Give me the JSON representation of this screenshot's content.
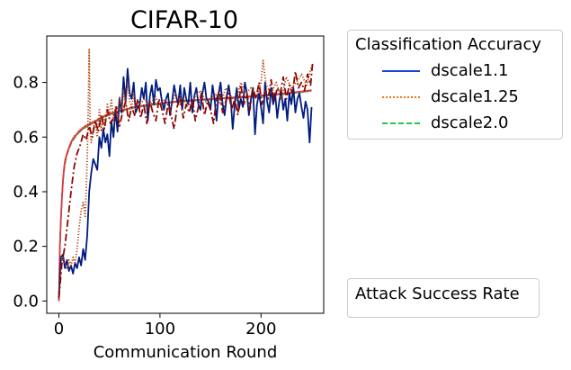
{
  "chart_data": {
    "type": "line",
    "title": "CIFAR-10",
    "xlabel": "Communication Round",
    "ylabel": "",
    "xlim": [
      -12,
      262
    ],
    "ylim": [
      -0.045,
      0.97
    ],
    "xticks": [
      0,
      100,
      200
    ],
    "yticks": [
      0.0,
      0.2,
      0.4,
      0.6,
      0.8
    ],
    "xtick_labels": [
      "0",
      "100",
      "200"
    ],
    "ytick_labels": [
      "0.0",
      "0.2",
      "0.4",
      "0.6",
      "0.8"
    ],
    "grid": false,
    "legend_groups": [
      {
        "title": "Classification Accuracy",
        "placement": "outside-right-top",
        "entries": [
          {
            "label": "dscale1.1",
            "color": "#1f3fd6",
            "style": "solid"
          },
          {
            "label": "dscale1.25",
            "color": "#ee7711",
            "style": "dotted"
          },
          {
            "label": "dscale2.0",
            "color": "#22cc44",
            "style": "dashed"
          }
        ]
      },
      {
        "title": "Attack Success Rate",
        "placement": "outside-right-bottom",
        "entries": []
      }
    ],
    "series": [
      {
        "group": "Classification Accuracy",
        "color": "#1f3fd6",
        "style": "solid",
        "x": [
          0,
          1,
          2,
          3,
          4,
          5,
          6,
          8,
          10,
          12,
          15,
          18,
          20,
          25,
          30,
          35,
          40,
          45,
          50,
          60,
          70,
          80,
          90,
          100,
          110,
          120,
          130,
          140,
          150,
          160,
          170,
          180,
          190,
          200,
          210,
          220,
          230,
          240,
          250
        ],
        "y": [
          0.0,
          0.2,
          0.3,
          0.38,
          0.44,
          0.48,
          0.51,
          0.54,
          0.56,
          0.58,
          0.6,
          0.61,
          0.62,
          0.635,
          0.645,
          0.655,
          0.665,
          0.675,
          0.683,
          0.695,
          0.705,
          0.712,
          0.718,
          0.723,
          0.727,
          0.73,
          0.733,
          0.736,
          0.738,
          0.741,
          0.743,
          0.746,
          0.748,
          0.751,
          0.754,
          0.757,
          0.761,
          0.765,
          0.77
        ]
      },
      {
        "group": "Classification Accuracy",
        "color": "#e08a3c",
        "style": "dotted",
        "x": [
          0,
          1,
          2,
          3,
          4,
          5,
          6,
          8,
          10,
          12,
          15,
          18,
          20,
          25,
          30,
          35,
          40,
          45,
          50,
          60,
          70,
          80,
          90,
          100,
          110,
          120,
          130,
          140,
          150,
          160,
          170,
          180,
          190,
          200,
          210,
          220,
          230,
          240,
          250
        ],
        "y": [
          0.0,
          0.21,
          0.31,
          0.39,
          0.45,
          0.49,
          0.52,
          0.545,
          0.565,
          0.585,
          0.605,
          0.615,
          0.625,
          0.64,
          0.65,
          0.66,
          0.67,
          0.68,
          0.687,
          0.699,
          0.708,
          0.715,
          0.72,
          0.725,
          0.728,
          0.731,
          0.734,
          0.737,
          0.739,
          0.742,
          0.744,
          0.747,
          0.749,
          0.752,
          0.755,
          0.758,
          0.762,
          0.766,
          0.771
        ]
      },
      {
        "group": "Classification Accuracy",
        "color": "#44b050",
        "style": "dashed",
        "x": [
          0,
          1,
          2,
          3,
          4,
          5,
          6,
          8,
          10,
          12,
          15,
          18,
          20,
          25,
          30,
          35,
          40,
          45,
          50,
          60,
          70,
          80,
          90,
          100,
          110,
          120,
          130,
          140,
          150,
          160,
          170,
          180,
          190,
          200,
          210,
          220,
          230,
          240,
          250
        ],
        "y": [
          0.0,
          0.19,
          0.29,
          0.37,
          0.43,
          0.47,
          0.5,
          0.535,
          0.555,
          0.575,
          0.595,
          0.607,
          0.617,
          0.632,
          0.643,
          0.653,
          0.663,
          0.673,
          0.681,
          0.693,
          0.703,
          0.71,
          0.716,
          0.721,
          0.725,
          0.729,
          0.732,
          0.735,
          0.737,
          0.74,
          0.742,
          0.745,
          0.747,
          0.75,
          0.753,
          0.756,
          0.76,
          0.764,
          0.769
        ]
      },
      {
        "group": "Classification Accuracy",
        "color": "#e8333c",
        "style": "solid",
        "x": [
          0,
          1,
          2,
          3,
          4,
          5,
          6,
          8,
          10,
          12,
          15,
          18,
          20,
          25,
          30,
          35,
          40,
          45,
          50,
          60,
          70,
          80,
          90,
          100,
          110,
          120,
          130,
          140,
          150,
          160,
          170,
          180,
          190,
          200,
          210,
          220,
          230,
          240,
          250
        ],
        "y": [
          0.0,
          0.2,
          0.3,
          0.38,
          0.44,
          0.48,
          0.51,
          0.54,
          0.56,
          0.58,
          0.6,
          0.612,
          0.622,
          0.637,
          0.648,
          0.657,
          0.667,
          0.677,
          0.685,
          0.697,
          0.706,
          0.713,
          0.719,
          0.724,
          0.728,
          0.732,
          0.735,
          0.737,
          0.74,
          0.742,
          0.745,
          0.747,
          0.75,
          0.753,
          0.756,
          0.759,
          0.763,
          0.767,
          0.772
        ]
      },
      {
        "group": "Attack Success Rate",
        "color": "#001c7f",
        "style": "solid",
        "x": [
          0,
          2,
          4,
          6,
          8,
          10,
          12,
          14,
          16,
          18,
          20,
          22,
          24,
          26,
          28,
          30,
          32,
          34,
          36,
          38,
          40,
          42,
          44,
          46,
          48,
          50,
          52,
          54,
          56,
          58,
          60,
          62,
          64,
          66,
          68,
          70,
          72,
          74,
          76,
          78,
          80,
          82,
          84,
          86,
          88,
          90,
          92,
          94,
          96,
          98,
          100,
          102,
          104,
          106,
          108,
          110,
          112,
          114,
          116,
          118,
          120,
          122,
          124,
          126,
          128,
          130,
          132,
          134,
          136,
          138,
          140,
          142,
          144,
          146,
          148,
          150,
          152,
          154,
          156,
          158,
          160,
          162,
          164,
          166,
          168,
          170,
          172,
          174,
          176,
          178,
          180,
          182,
          184,
          186,
          188,
          190,
          192,
          194,
          196,
          198,
          200,
          202,
          204,
          206,
          208,
          210,
          212,
          214,
          216,
          218,
          220,
          222,
          224,
          226,
          228,
          230,
          232,
          234,
          236,
          238,
          240,
          242,
          244,
          246,
          248,
          250
        ],
        "y": [
          0.01,
          0.16,
          0.17,
          0.12,
          0.15,
          0.11,
          0.13,
          0.1,
          0.14,
          0.12,
          0.16,
          0.13,
          0.19,
          0.15,
          0.24,
          0.4,
          0.47,
          0.52,
          0.5,
          0.48,
          0.6,
          0.56,
          0.63,
          0.58,
          0.61,
          0.53,
          0.66,
          0.6,
          0.7,
          0.62,
          0.74,
          0.69,
          0.82,
          0.73,
          0.85,
          0.76,
          0.74,
          0.8,
          0.69,
          0.71,
          0.72,
          0.78,
          0.74,
          0.8,
          0.66,
          0.75,
          0.79,
          0.72,
          0.81,
          0.77,
          0.78,
          0.73,
          0.7,
          0.74,
          0.76,
          0.68,
          0.73,
          0.79,
          0.75,
          0.72,
          0.79,
          0.7,
          0.78,
          0.74,
          0.72,
          0.8,
          0.69,
          0.75,
          0.78,
          0.72,
          0.7,
          0.76,
          0.8,
          0.74,
          0.73,
          0.7,
          0.79,
          0.74,
          0.66,
          0.76,
          0.8,
          0.72,
          0.68,
          0.75,
          0.79,
          0.74,
          0.63,
          0.72,
          0.78,
          0.7,
          0.74,
          0.71,
          0.8,
          0.76,
          0.68,
          0.74,
          0.78,
          0.61,
          0.72,
          0.76,
          0.71,
          0.65,
          0.8,
          0.73,
          0.69,
          0.78,
          0.72,
          0.76,
          0.67,
          0.73,
          0.77,
          0.7,
          0.74,
          0.66,
          0.76,
          0.72,
          0.78,
          0.69,
          0.74,
          0.76,
          0.71,
          0.67,
          0.73,
          0.7,
          0.58,
          0.71
        ]
      },
      {
        "group": "Attack Success Rate",
        "color": "#b1400d",
        "style": "dotted",
        "x": [
          0,
          2,
          4,
          6,
          8,
          10,
          12,
          14,
          16,
          18,
          20,
          22,
          24,
          26,
          27,
          28,
          29,
          30,
          31,
          32,
          34,
          36,
          38,
          40,
          42,
          44,
          46,
          48,
          50,
          52,
          54,
          56,
          58,
          60,
          62,
          64,
          66,
          68,
          70,
          72,
          74,
          76,
          78,
          80,
          85,
          90,
          95,
          100,
          105,
          110,
          115,
          120,
          125,
          130,
          135,
          140,
          145,
          150,
          155,
          160,
          165,
          170,
          175,
          180,
          185,
          190,
          195,
          200,
          202,
          205,
          210,
          215,
          220,
          225,
          230,
          235,
          240,
          245,
          250
        ],
        "y": [
          0.01,
          0.12,
          0.16,
          0.14,
          0.12,
          0.15,
          0.13,
          0.16,
          0.14,
          0.19,
          0.27,
          0.33,
          0.36,
          0.31,
          0.4,
          0.52,
          0.7,
          0.92,
          0.62,
          0.58,
          0.63,
          0.66,
          0.6,
          0.7,
          0.62,
          0.68,
          0.65,
          0.72,
          0.68,
          0.74,
          0.66,
          0.71,
          0.67,
          0.75,
          0.7,
          0.77,
          0.72,
          0.8,
          0.73,
          0.71,
          0.76,
          0.7,
          0.73,
          0.72,
          0.74,
          0.71,
          0.75,
          0.72,
          0.74,
          0.7,
          0.76,
          0.72,
          0.74,
          0.71,
          0.75,
          0.77,
          0.73,
          0.74,
          0.76,
          0.72,
          0.78,
          0.75,
          0.73,
          0.8,
          0.76,
          0.78,
          0.74,
          0.8,
          0.88,
          0.79,
          0.76,
          0.8,
          0.74,
          0.82,
          0.78,
          0.8,
          0.83,
          0.79,
          0.86
        ]
      },
      {
        "group": "Attack Success Rate",
        "color": "#8c0800",
        "style": "dashdot",
        "x": [
          0,
          3,
          6,
          9,
          12,
          15,
          18,
          21,
          24,
          27,
          30,
          33,
          36,
          39,
          42,
          45,
          48,
          51,
          54,
          57,
          60,
          63,
          66,
          69,
          72,
          75,
          78,
          81,
          84,
          87,
          90,
          93,
          96,
          99,
          102,
          105,
          108,
          111,
          114,
          117,
          120,
          123,
          126,
          129,
          132,
          135,
          138,
          141,
          144,
          147,
          150,
          153,
          156,
          159,
          162,
          165,
          168,
          171,
          174,
          177,
          180,
          183,
          186,
          189,
          192,
          195,
          198,
          201,
          204,
          207,
          210,
          213,
          216,
          219,
          222,
          225,
          228,
          231,
          234,
          237,
          240,
          243,
          246,
          249,
          251
        ],
        "y": [
          0.01,
          0.14,
          0.2,
          0.3,
          0.4,
          0.49,
          0.54,
          0.57,
          0.61,
          0.59,
          0.64,
          0.6,
          0.66,
          0.62,
          0.68,
          0.63,
          0.7,
          0.65,
          0.67,
          0.71,
          0.64,
          0.69,
          0.73,
          0.66,
          0.71,
          0.68,
          0.74,
          0.67,
          0.72,
          0.65,
          0.73,
          0.69,
          0.66,
          0.74,
          0.7,
          0.65,
          0.72,
          0.68,
          0.63,
          0.71,
          0.75,
          0.67,
          0.72,
          0.69,
          0.74,
          0.66,
          0.71,
          0.76,
          0.68,
          0.73,
          0.7,
          0.65,
          0.74,
          0.77,
          0.69,
          0.73,
          0.76,
          0.7,
          0.74,
          0.68,
          0.79,
          0.72,
          0.76,
          0.7,
          0.78,
          0.74,
          0.8,
          0.72,
          0.77,
          0.74,
          0.81,
          0.73,
          0.78,
          0.76,
          0.82,
          0.74,
          0.79,
          0.76,
          0.84,
          0.78,
          0.8,
          0.77,
          0.83,
          0.79,
          0.87
        ]
      }
    ]
  }
}
